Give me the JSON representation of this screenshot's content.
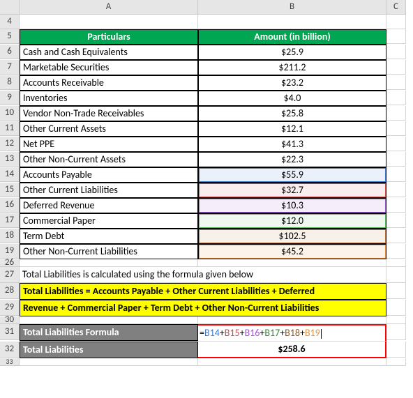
{
  "columns": [
    "",
    "A",
    "B",
    "C"
  ],
  "header": {
    "particulars": "Particulars",
    "amount": "Amount (in billion)"
  },
  "rows": [
    {
      "n": 6,
      "label": "Cash and Cash Equivalents",
      "value": "$25.9"
    },
    {
      "n": 7,
      "label": "Marketable Securities",
      "value": "$211.2"
    },
    {
      "n": 8,
      "label": "Accounts Receivable",
      "value": "$23.2"
    },
    {
      "n": 9,
      "label": "Inventories",
      "value": "$4.0"
    },
    {
      "n": 10,
      "label": "Vendor Non-Trade Receivables",
      "value": "$25.8"
    },
    {
      "n": 11,
      "label": "Other Current Assets",
      "value": "$12.1"
    },
    {
      "n": 12,
      "label": "Net PPE",
      "value": "$41.3"
    },
    {
      "n": 13,
      "label": "Other Non-Current Assets",
      "value": "$22.3"
    },
    {
      "n": 14,
      "label": "Accounts Payable",
      "value": "$55.9",
      "hl": "hl-blue"
    },
    {
      "n": 15,
      "label": "Other Current Liabilities",
      "value": "$32.7",
      "hl": "hl-red"
    },
    {
      "n": 16,
      "label": "Deferred Revenue",
      "value": "$10.3",
      "hl": "hl-purple"
    },
    {
      "n": 17,
      "label": "Commercial Paper",
      "value": "$12.0",
      "hl": "hl-green"
    },
    {
      "n": 18,
      "label": "Term Debt",
      "value": "$102.5",
      "hl": "hl-brown"
    },
    {
      "n": 19,
      "label": "Other Non-Current Liabilities",
      "value": "$45.2",
      "hl": "hl-orange"
    }
  ],
  "note_row": 27,
  "note": "Total Liabilities is calculated using the formula given below",
  "formula_text": {
    "row1": 28,
    "row2": 29,
    "line1": "Total Liabilities = Accounts Payable + Other Current Liabilities + Deferred",
    "line2": "Revenue + Commercial Paper + Term Debt + Other Non-Current Liabilities"
  },
  "result_block": {
    "row1": 31,
    "row2": 32,
    "label1": "Total Liabilities Formula",
    "label2": "Total Liabilities",
    "formula_refs": [
      {
        "ref": "B14",
        "cls": "f-blue"
      },
      {
        "ref": "B15",
        "cls": "f-red"
      },
      {
        "ref": "B16",
        "cls": "f-purple"
      },
      {
        "ref": "B17",
        "cls": "f-green"
      },
      {
        "ref": "B18",
        "cls": "f-brown"
      },
      {
        "ref": "B19",
        "cls": "f-orange"
      }
    ],
    "total": "$258.6"
  },
  "colors": {
    "header_bg": "#00a651",
    "highlight_bg": "#ffff00",
    "gray_bg": "#808080",
    "red_border": "#ff0000"
  }
}
